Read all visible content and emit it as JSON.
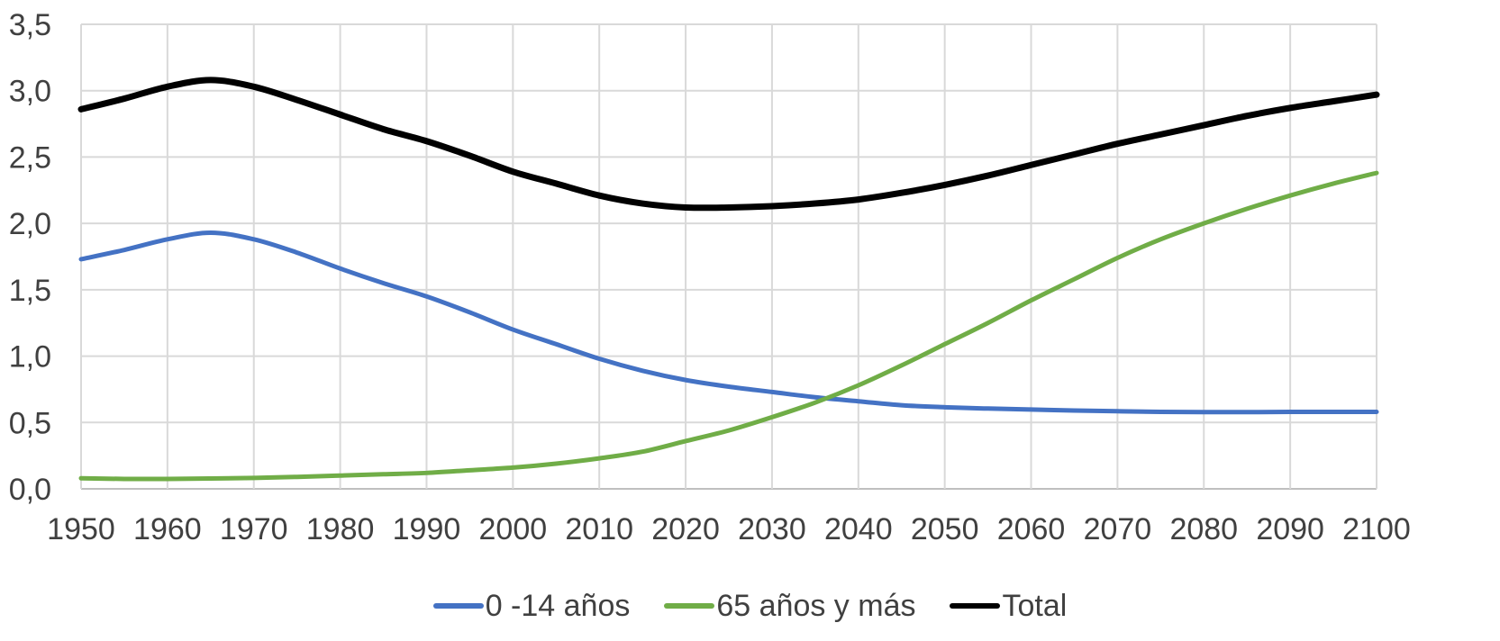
{
  "chart_data": {
    "type": "line",
    "title": "",
    "xlabel": "",
    "ylabel": "",
    "xlim": [
      1950,
      2100
    ],
    "ylim": [
      0,
      3.5
    ],
    "grid": true,
    "legend_position": "bottom",
    "x_ticks": [
      "1950",
      "1960",
      "1970",
      "1980",
      "1990",
      "2000",
      "2010",
      "2020",
      "2030",
      "2040",
      "2050",
      "2060",
      "2070",
      "2080",
      "2090",
      "2100"
    ],
    "y_ticks": [
      "0,0",
      "0,5",
      "1,0",
      "1,5",
      "2,0",
      "2,5",
      "3,0",
      "3,5"
    ],
    "x": [
      1950,
      1955,
      1960,
      1965,
      1970,
      1975,
      1980,
      1985,
      1990,
      1995,
      2000,
      2005,
      2010,
      2015,
      2020,
      2025,
      2030,
      2035,
      2040,
      2045,
      2050,
      2055,
      2060,
      2065,
      2070,
      2075,
      2080,
      2085,
      2090,
      2095,
      2100
    ],
    "series": [
      {
        "name": "0 -14 años",
        "color": "#4472C4",
        "values": [
          1.73,
          1.8,
          1.88,
          1.93,
          1.88,
          1.78,
          1.66,
          1.55,
          1.45,
          1.33,
          1.2,
          1.09,
          0.98,
          0.89,
          0.82,
          0.77,
          0.73,
          0.69,
          0.66,
          0.63,
          0.615,
          0.605,
          0.598,
          0.59,
          0.585,
          0.58,
          0.578,
          0.578,
          0.58,
          0.58,
          0.58
        ]
      },
      {
        "name": "65 años y más",
        "color": "#70AD47",
        "values": [
          0.08,
          0.075,
          0.075,
          0.078,
          0.082,
          0.09,
          0.1,
          0.11,
          0.12,
          0.14,
          0.16,
          0.19,
          0.23,
          0.28,
          0.36,
          0.44,
          0.54,
          0.65,
          0.78,
          0.93,
          1.09,
          1.25,
          1.42,
          1.58,
          1.74,
          1.88,
          2.0,
          2.11,
          2.21,
          2.3,
          2.38
        ]
      },
      {
        "name": "Total",
        "color": "#000000",
        "values": [
          2.86,
          2.94,
          3.03,
          3.08,
          3.03,
          2.93,
          2.82,
          2.71,
          2.62,
          2.51,
          2.39,
          2.3,
          2.21,
          2.15,
          2.12,
          2.12,
          2.13,
          2.15,
          2.18,
          2.23,
          2.29,
          2.36,
          2.44,
          2.52,
          2.6,
          2.67,
          2.74,
          2.81,
          2.87,
          2.92,
          2.97
        ]
      }
    ]
  }
}
